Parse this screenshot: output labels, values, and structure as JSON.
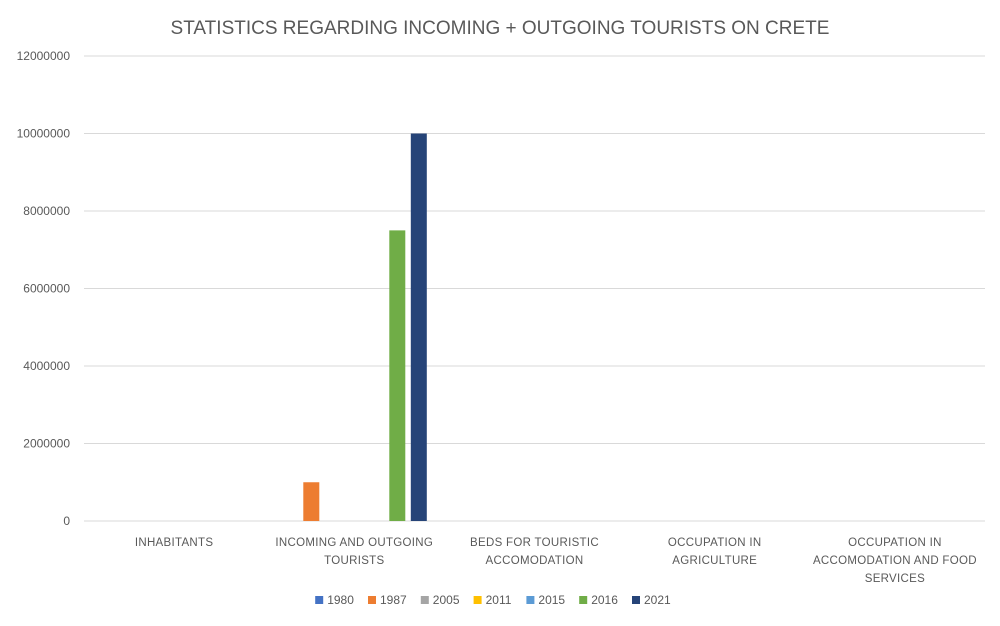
{
  "chart_data": {
    "type": "bar",
    "title": "STATISTICS REGARDING INCOMING + OUTGOING TOURISTS ON CRETE",
    "xlabel": "",
    "ylabel": "",
    "ylim": [
      0,
      12000000
    ],
    "yticks": [
      0,
      2000000,
      4000000,
      6000000,
      8000000,
      10000000,
      12000000
    ],
    "ytick_labels": [
      "0",
      "2000000",
      "4000000",
      "6000000",
      "8000000",
      "10000000",
      "12000000"
    ],
    "grid": true,
    "legend_position": "bottom",
    "categories": [
      [
        "INHABITANTS"
      ],
      [
        "INCOMING AND OUTGOING",
        "TOURISTS"
      ],
      [
        "BEDS FOR TOURISTIC",
        "ACCOMODATION"
      ],
      [
        "OCCUPATION IN",
        "AGRICULTURE"
      ],
      [
        "OCCUPATION IN",
        "ACCOMODATION AND FOOD",
        "SERVICES"
      ]
    ],
    "series": [
      {
        "name": "1980",
        "color": "#4472c4",
        "values": [
          0,
          0,
          0,
          0,
          0
        ]
      },
      {
        "name": "1987",
        "color": "#ed7d31",
        "values": [
          0,
          1000000,
          0,
          0,
          0
        ]
      },
      {
        "name": "2005",
        "color": "#a5a5a5",
        "values": [
          0,
          0,
          0,
          0,
          0
        ]
      },
      {
        "name": "2011",
        "color": "#ffc000",
        "values": [
          0,
          0,
          0,
          0,
          0
        ]
      },
      {
        "name": "2015",
        "color": "#5b9bd5",
        "values": [
          0,
          0,
          0,
          0,
          0
        ]
      },
      {
        "name": "2016",
        "color": "#70ad47",
        "values": [
          0,
          7500000,
          0,
          0,
          0
        ]
      },
      {
        "name": "2021",
        "color": "#264478",
        "values": [
          0,
          10000000,
          0,
          0,
          0
        ]
      }
    ]
  }
}
